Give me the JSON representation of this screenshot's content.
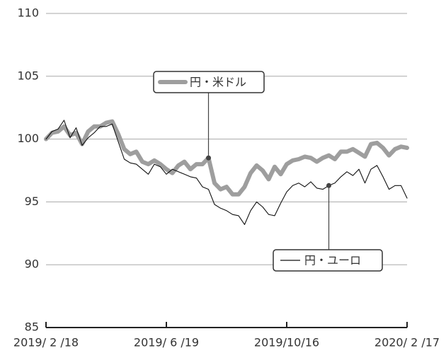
{
  "chart_data": {
    "type": "line",
    "categories": [
      "2019/ 2 /18",
      null,
      null,
      null,
      null,
      null,
      null,
      null,
      null,
      null,
      null,
      null,
      null,
      null,
      null,
      null,
      null,
      null,
      null,
      null,
      "2019/ 6 /19",
      null,
      null,
      null,
      null,
      null,
      null,
      null,
      null,
      null,
      null,
      null,
      null,
      null,
      null,
      null,
      null,
      null,
      null,
      null,
      "2019/10/16",
      null,
      null,
      null,
      null,
      null,
      null,
      null,
      null,
      null,
      null,
      null,
      null,
      null,
      null,
      null,
      null,
      null,
      null,
      null,
      "2020/ 2 /17"
    ],
    "series": [
      {
        "name": "円・米ドル",
        "color": "#9e9e9e",
        "values": [
          100.0,
          100.5,
          100.6,
          101.0,
          100.3,
          100.5,
          99.6,
          100.6,
          101.0,
          101.0,
          101.3,
          101.4,
          100.4,
          99.2,
          98.8,
          99.0,
          98.2,
          98.0,
          98.3,
          98.0,
          97.6,
          97.3,
          97.9,
          98.2,
          97.6,
          98.0,
          98.0,
          98.5,
          96.5,
          96.0,
          96.2,
          95.6,
          95.6,
          96.2,
          97.3,
          97.9,
          97.5,
          96.8,
          97.8,
          97.2,
          98.0,
          98.3,
          98.4,
          98.6,
          98.5,
          98.2,
          98.5,
          98.7,
          98.4,
          99.0,
          99.0,
          99.2,
          98.9,
          98.6,
          99.6,
          99.7,
          99.3,
          98.7,
          99.2,
          99.4,
          99.3
        ]
      },
      {
        "name": "円・ユーロ",
        "color": "#111111",
        "values": [
          100.0,
          100.6,
          100.8,
          101.5,
          100.1,
          100.9,
          99.5,
          100.1,
          100.5,
          101.0,
          101.0,
          101.2,
          99.8,
          98.4,
          98.1,
          98.0,
          97.6,
          97.2,
          98.0,
          97.8,
          97.2,
          97.6,
          97.4,
          97.2,
          97.0,
          96.9,
          96.2,
          96.0,
          94.8,
          94.5,
          94.3,
          94.0,
          93.9,
          93.2,
          94.3,
          95.0,
          94.6,
          94.0,
          93.9,
          94.9,
          95.8,
          96.3,
          96.5,
          96.2,
          96.6,
          96.1,
          96.0,
          96.3,
          96.5,
          97.0,
          97.4,
          97.1,
          97.6,
          96.5,
          97.6,
          97.9,
          97.0,
          96.0,
          96.3,
          96.3,
          95.3
        ]
      }
    ],
    "ylim": [
      85,
      110
    ],
    "yticks": [
      85,
      90,
      95,
      100,
      105,
      110
    ],
    "grid": true
  }
}
